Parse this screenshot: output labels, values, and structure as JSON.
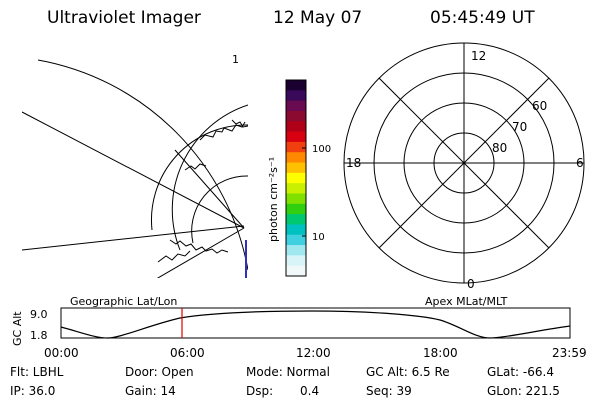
{
  "header": {
    "instrument": "Ultraviolet Imager",
    "date": "12 May 07",
    "time": "05:45:49 UT"
  },
  "colorbar": {
    "unit": "photon cm⁻²s⁻¹",
    "tick_labels": [
      "100",
      "10"
    ],
    "colors": [
      "#1a0030",
      "#3a0a5a",
      "#6a0a50",
      "#8a0a30",
      "#b00018",
      "#d80010",
      "#f04010",
      "#ff8800",
      "#ffc000",
      "#ffff00",
      "#c8f000",
      "#80e000",
      "#30d010",
      "#00c870",
      "#00c0c0",
      "#40d0e0",
      "#a0e8f0",
      "#d8f4f8",
      "#f0f8f8"
    ]
  },
  "geo_map": {
    "label": "Geographic Lat/Lon",
    "corner_mark": "1",
    "coast_color": "#000000",
    "edge_color": "#3030c0"
  },
  "polar_plot": {
    "label": "Apex MLat/MLT",
    "mlt_labels": [
      "12",
      "18",
      "6",
      "0"
    ],
    "mlat_labels": [
      "60",
      "70",
      "80"
    ]
  },
  "altitude_plot": {
    "ylabel": "GC Alt",
    "yticks": [
      "9.0",
      "1.8"
    ],
    "xticks": [
      "00:00",
      "06:00",
      "12:00",
      "18:00",
      "23:59"
    ],
    "marker_color": "#e00000",
    "marker_time": "05:45:49"
  },
  "info": {
    "flt": "Flt: LBHL",
    "door": "Door: Open",
    "mode": "Mode: Normal",
    "gc_alt": "GC Alt: 6.5 Re",
    "glat": "GLat: -66.4",
    "ip": "IP: 36.0",
    "gain": "Gain: 14",
    "dsp_label": "Dsp:",
    "dsp_value": "0.4",
    "seq": "Seq: 39",
    "glon": "GLon: 221.5"
  }
}
